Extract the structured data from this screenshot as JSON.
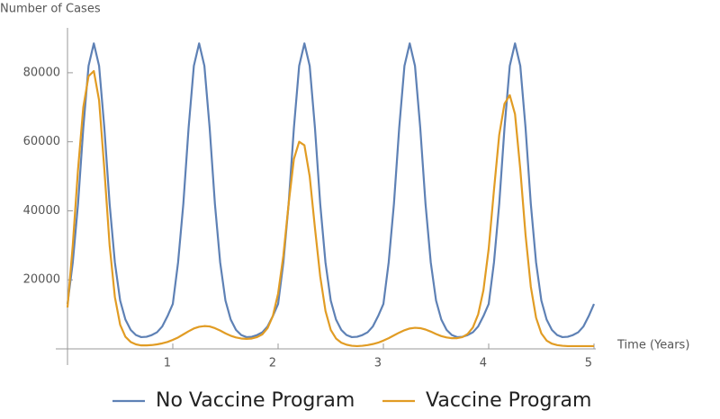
{
  "chart_data": {
    "type": "line",
    "y_label": "Number of Cases",
    "x_label": "Time (Years)",
    "x": [
      0,
      0.05,
      0.1,
      0.15,
      0.2,
      0.25,
      0.3,
      0.35,
      0.4,
      0.45,
      0.5,
      0.55,
      0.6,
      0.65,
      0.7,
      0.75,
      0.8,
      0.85,
      0.9,
      0.95,
      1,
      1.05,
      1.1,
      1.15,
      1.2,
      1.25,
      1.3,
      1.35,
      1.4,
      1.45,
      1.5,
      1.55,
      1.6,
      1.65,
      1.7,
      1.75,
      1.8,
      1.85,
      1.9,
      1.95,
      2,
      2.05,
      2.1,
      2.15,
      2.2,
      2.25,
      2.3,
      2.35,
      2.4,
      2.45,
      2.5,
      2.55,
      2.6,
      2.65,
      2.7,
      2.75,
      2.8,
      2.85,
      2.9,
      2.95,
      3,
      3.05,
      3.1,
      3.15,
      3.2,
      3.25,
      3.3,
      3.35,
      3.4,
      3.45,
      3.5,
      3.55,
      3.6,
      3.65,
      3.7,
      3.75,
      3.8,
      3.85,
      3.9,
      3.95,
      4,
      4.05,
      4.1,
      4.15,
      4.2,
      4.25,
      4.3,
      4.35,
      4.4,
      4.45,
      4.5,
      4.55,
      4.6,
      4.65,
      4.7,
      4.75,
      4.8,
      4.85,
      4.9,
      4.95,
      5
    ],
    "series": [
      {
        "name": "No Vaccine Program",
        "color": "#5e81b5",
        "values": [
          13000,
          25000,
          42000,
          64000,
          82000,
          88500,
          82000,
          64000,
          42000,
          25000,
          14000,
          8500,
          5500,
          4000,
          3400,
          3500,
          4000,
          4800,
          6500,
          9500,
          13000,
          25000,
          42000,
          64000,
          82000,
          88500,
          82000,
          64000,
          42000,
          25000,
          14000,
          8500,
          5500,
          4000,
          3400,
          3500,
          4000,
          4800,
          6500,
          9500,
          13000,
          25000,
          42000,
          64000,
          82000,
          88500,
          82000,
          64000,
          42000,
          25000,
          14000,
          8500,
          5500,
          4000,
          3400,
          3500,
          4000,
          4800,
          6500,
          9500,
          13000,
          25000,
          42000,
          64000,
          82000,
          88500,
          82000,
          64000,
          42000,
          25000,
          14000,
          8500,
          5500,
          4000,
          3400,
          3500,
          4000,
          4800,
          6500,
          9500,
          13000,
          25000,
          42000,
          64000,
          82000,
          88500,
          82000,
          64000,
          42000,
          25000,
          14000,
          8500,
          5500,
          4000,
          3400,
          3500,
          4000,
          4800,
          6500,
          9500,
          13000
        ]
      },
      {
        "name": "Vaccine Program",
        "color": "#e19c24",
        "values": [
          12000,
          30000,
          52000,
          70000,
          79000,
          80500,
          72000,
          52000,
          30000,
          15000,
          7000,
          3500,
          2000,
          1300,
          1000,
          1000,
          1100,
          1300,
          1600,
          2000,
          2600,
          3300,
          4200,
          5100,
          5900,
          6400,
          6600,
          6500,
          6000,
          5300,
          4500,
          3800,
          3300,
          3000,
          2900,
          3000,
          3400,
          4200,
          6000,
          9500,
          16000,
          27000,
          42000,
          55000,
          60000,
          59000,
          50000,
          35000,
          21000,
          11000,
          5500,
          3000,
          1800,
          1200,
          900,
          800,
          900,
          1100,
          1400,
          1800,
          2400,
          3100,
          3900,
          4700,
          5400,
          5900,
          6100,
          6000,
          5600,
          5000,
          4300,
          3700,
          3300,
          3100,
          3100,
          3400,
          4300,
          6200,
          10000,
          17000,
          29000,
          46000,
          62000,
          71000,
          73500,
          68000,
          52000,
          33000,
          18000,
          9000,
          4500,
          2400,
          1500,
          1100,
          900,
          800,
          800,
          800,
          800,
          800,
          800
        ]
      }
    ],
    "xlim": [
      0,
      5
    ],
    "ylim": [
      0,
      93000
    ],
    "xticks": [
      1,
      2,
      3,
      4,
      5
    ],
    "yticks": [
      20000,
      40000,
      60000,
      80000
    ],
    "legend": "bottom"
  }
}
